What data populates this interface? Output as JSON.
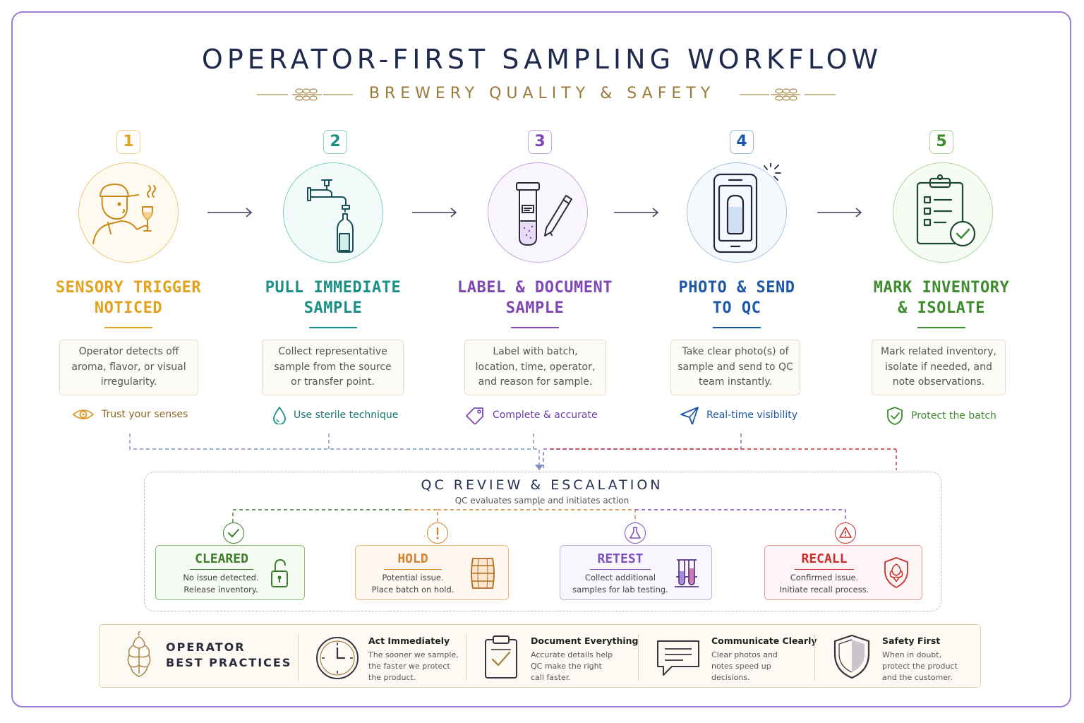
{
  "header": {
    "title": "OPERATOR-FIRST SAMPLING WORKFLOW",
    "subtitle": "BREWERY QUALITY & SAFETY"
  },
  "steps": [
    {
      "num": "1",
      "title_line1": "SENSORY TRIGGER",
      "title_line2": "NOTICED",
      "desc": "Operator detects off aroma, flavor, or visual irregularity.",
      "tip": "Trust your senses",
      "color": "#e2a21f",
      "icon": "taster-icon",
      "tip_icon": "eye-icon"
    },
    {
      "num": "2",
      "title_line1": "PULL IMMEDIATE",
      "title_line2": "SAMPLE",
      "desc": "Collect representative sample from the source or transfer point.",
      "tip": "Use sterile technique",
      "color": "#1a8f86",
      "icon": "tap-bottle-icon",
      "tip_icon": "drop-icon"
    },
    {
      "num": "3",
      "title_line1": "LABEL & DOCUMENT",
      "title_line2": "SAMPLE",
      "desc": "Label with batch, location, time, operator, and reason for sample.",
      "tip": "Complete & accurate",
      "color": "#7e47b4",
      "icon": "test-tube-pen-icon",
      "tip_icon": "tag-icon"
    },
    {
      "num": "4",
      "title_line1": "PHOTO & SEND",
      "title_line2": "TO QC",
      "desc": "Take clear photo(s) of sample and send to QC team instantly.",
      "tip": "Real-time visibility",
      "color": "#1e56a8",
      "icon": "phone-photo-icon",
      "tip_icon": "send-icon"
    },
    {
      "num": "5",
      "title_line1": "MARK INVENTORY",
      "title_line2": "& ISOLATE",
      "desc": "Mark related inventory, isolate if needed, and note observations.",
      "tip": "Protect the batch",
      "color": "#3e8c2f",
      "icon": "clipboard-check-icon",
      "tip_icon": "shield-check-icon"
    }
  ],
  "qc": {
    "title": "QC REVIEW & ESCALATION",
    "subtitle": "QC evaluates sample and initiates action"
  },
  "outcomes": [
    {
      "title": "CLEARED",
      "line1": "No issue detected.",
      "line2": "Release inventory.",
      "color": "#3e7d2b",
      "bg": "#f5faf2",
      "icon": "unlock-icon",
      "badge": "check-icon"
    },
    {
      "title": "HOLD",
      "line1": "Potential issue.",
      "line2": "Place batch on hold.",
      "color": "#d9822b",
      "bg": "#fef8f0",
      "icon": "barrel-icon",
      "badge": "exclamation-icon"
    },
    {
      "title": "RETEST",
      "line1": "Collect additional",
      "line2": "samples for lab testing.",
      "color": "#7d4fc0",
      "bg": "#f8f5fd",
      "icon": "test-tubes-icon",
      "badge": "flask-icon"
    },
    {
      "title": "RECALL",
      "line1": "Confirmed issue.",
      "line2": "Initiate recall process.",
      "color": "#c9302c",
      "bg": "#fdf5f5",
      "icon": "hop-shield-icon",
      "badge": "warning-icon"
    }
  ],
  "best_practices": {
    "heading_line1": "OPERATOR",
    "heading_line2": "BEST PRACTICES",
    "items": [
      {
        "title": "Act Immediately",
        "l1": "The sooner we sample,",
        "l2": "the faster we protect",
        "l3": "the product.",
        "icon": "clock-icon"
      },
      {
        "title": "Document Everything",
        "l1": "Accurate details help",
        "l2": "QC make the right",
        "l3": "call faster.",
        "icon": "clipboard-icon"
      },
      {
        "title": "Communicate Clearly",
        "l1": "Clear photos and",
        "l2": "notes speed up",
        "l3": "decisions.",
        "icon": "chat-icon"
      },
      {
        "title": "Safety First",
        "l1": "When in doubt,",
        "l2": "protect the product",
        "l3": "and the customer.",
        "icon": "shield-icon"
      }
    ]
  }
}
